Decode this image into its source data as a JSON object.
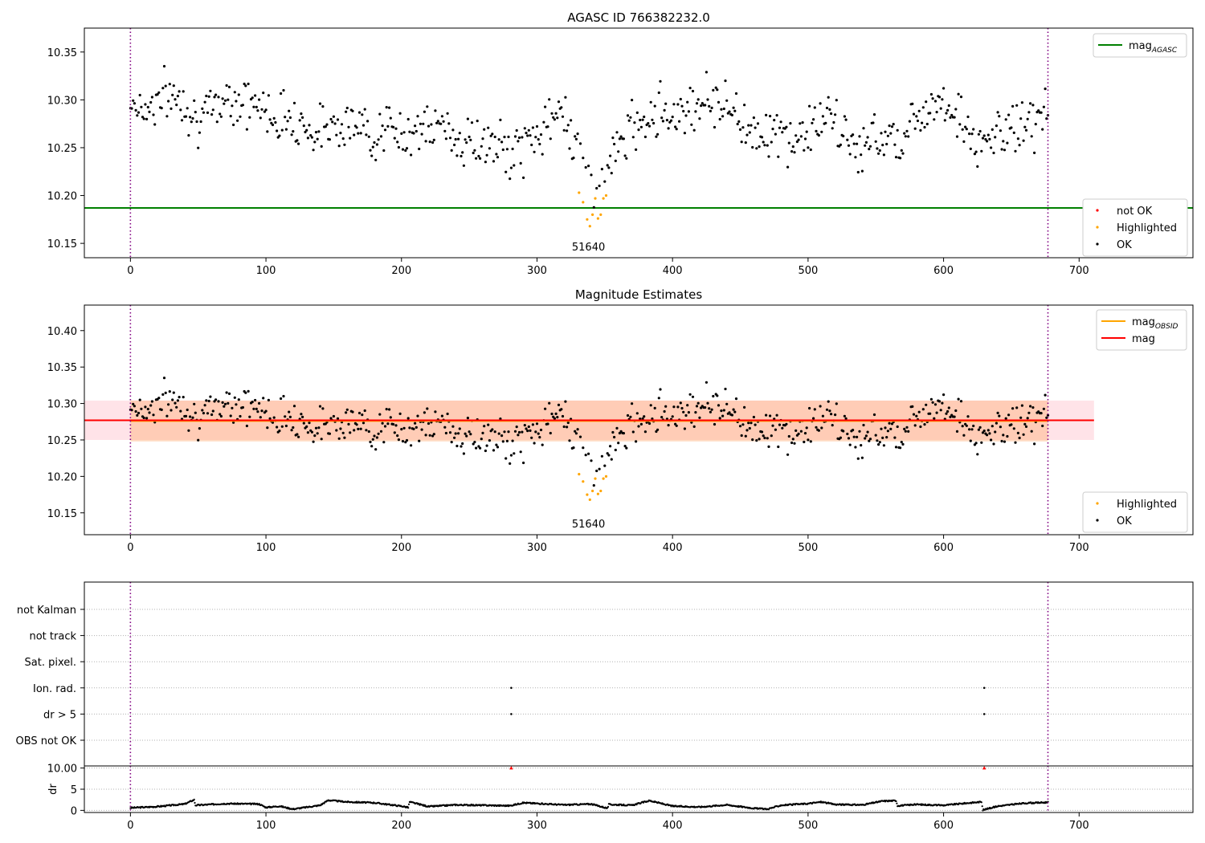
{
  "chart_data": [
    {
      "type": "scatter",
      "title": "AGASC ID 766382232.0",
      "xlabel": "",
      "ylabel": "",
      "xlim": [
        -34,
        784
      ],
      "ylim": [
        10.135,
        10.375
      ],
      "xticks": [
        0,
        100,
        200,
        300,
        400,
        500,
        600,
        700
      ],
      "yticks": [
        10.15,
        10.2,
        10.25,
        10.3,
        10.35
      ],
      "vlines": [
        0,
        677
      ],
      "hline": {
        "name": "mag_AGASC",
        "y": 10.187,
        "color": "#008000"
      },
      "obsid_label": {
        "text": "51640",
        "x": 338
      },
      "legend_top": {
        "position": "top-right",
        "entries": [
          {
            "label": "mag",
            "subscript": "AGASC",
            "color": "#008000"
          }
        ]
      },
      "legend_bottom": {
        "position": "lower-right",
        "entries": [
          {
            "label": "not OK",
            "color": "#ff0000"
          },
          {
            "label": "Highlighted",
            "color": "#ffa500"
          },
          {
            "label": "OK",
            "color": "#000000"
          }
        ]
      },
      "series": [
        {
          "name": "OK",
          "color": "#000000",
          "x": [
            0,
            10,
            20,
            30,
            40,
            50,
            60,
            70,
            80,
            90,
            100,
            110,
            120,
            130,
            140,
            150,
            160,
            170,
            180,
            190,
            200,
            210,
            220,
            230,
            240,
            250,
            260,
            270,
            280,
            290,
            300,
            310,
            320,
            328,
            335,
            340,
            345,
            350,
            355,
            360,
            370,
            380,
            390,
            400,
            410,
            420,
            430,
            440,
            450,
            460,
            470,
            480,
            490,
            500,
            510,
            520,
            530,
            540,
            550,
            560,
            570,
            580,
            590,
            600,
            610,
            620,
            625,
            630,
            640,
            650,
            660,
            670,
            677
          ],
          "y": [
            10.3,
            10.29,
            10.3,
            10.305,
            10.3,
            10.28,
            10.285,
            10.305,
            10.3,
            10.295,
            10.29,
            10.28,
            10.285,
            10.27,
            10.265,
            10.28,
            10.275,
            10.27,
            10.265,
            10.27,
            10.26,
            10.275,
            10.265,
            10.275,
            10.26,
            10.255,
            10.255,
            10.25,
            10.245,
            10.25,
            10.265,
            10.275,
            10.29,
            10.26,
            10.225,
            10.215,
            10.22,
            10.225,
            10.235,
            10.25,
            10.27,
            10.285,
            10.29,
            10.285,
            10.29,
            10.3,
            10.3,
            10.295,
            10.28,
            10.265,
            10.27,
            10.26,
            10.255,
            10.27,
            10.28,
            10.275,
            10.255,
            10.25,
            10.26,
            10.265,
            10.26,
            10.28,
            10.3,
            10.3,
            10.285,
            10.265,
            10.24,
            10.255,
            10.265,
            10.27,
            10.275,
            10.28,
            10.29
          ]
        },
        {
          "name": "Highlighted",
          "color": "#ffa500",
          "x": [
            331,
            334,
            337,
            339,
            341,
            343,
            345,
            347,
            349,
            351
          ],
          "y": [
            10.203,
            10.193,
            10.175,
            10.168,
            10.18,
            10.197,
            10.176,
            10.18,
            10.197,
            10.2
          ]
        },
        {
          "name": "not OK",
          "color": "#ff0000",
          "x": [],
          "y": []
        }
      ]
    },
    {
      "type": "scatter",
      "title": "Magnitude Estimates",
      "xlabel": "",
      "ylabel": "",
      "xlim": [
        -34,
        784
      ],
      "ylim": [
        10.12,
        10.435
      ],
      "xticks": [
        0,
        100,
        200,
        300,
        400,
        500,
        600,
        700
      ],
      "yticks": [
        10.15,
        10.2,
        10.25,
        10.3,
        10.35,
        10.4
      ],
      "vlines": [
        0,
        677
      ],
      "hlines": [
        {
          "name": "mag_OBSID",
          "y": 10.276,
          "color": "#ffa500",
          "x_range": [
            0,
            677
          ],
          "band": [
            10.248,
            10.304
          ]
        },
        {
          "name": "mag",
          "y": 10.277,
          "color": "#ff0000",
          "x_range": [
            -34,
            711
          ],
          "band": [
            10.25,
            10.304
          ]
        }
      ],
      "obsid_label": {
        "text": "51640",
        "x": 338
      },
      "legend_top": {
        "position": "top-right",
        "entries": [
          {
            "label": "mag",
            "subscript": "OBSID",
            "color": "#ffa500"
          },
          {
            "label": "mag",
            "subscript": "",
            "color": "#ff0000"
          }
        ]
      },
      "legend_bottom": {
        "position": "lower-right",
        "entries": [
          {
            "label": "Highlighted",
            "color": "#ffa500"
          },
          {
            "label": "OK",
            "color": "#000000"
          }
        ]
      },
      "series": [
        {
          "name": "OK",
          "color": "#000000",
          "same_as_panel": 0
        },
        {
          "name": "Highlighted",
          "color": "#ffa500",
          "same_as_panel": 0
        }
      ]
    },
    {
      "type": "scatter",
      "title": "",
      "xlabel": "",
      "ylabel": "",
      "xlim": [
        -34,
        784
      ],
      "categories": [
        "not Kalman",
        "not track",
        "Sat. pixel.",
        "Ion. rad.",
        "dr > 5",
        "OBS not OK"
      ],
      "flags": [
        {
          "category": "Ion. rad.",
          "x": [
            281,
            630
          ]
        },
        {
          "category": "dr > 5",
          "x": [
            281,
            630
          ]
        }
      ],
      "vlines": [
        0,
        677
      ]
    },
    {
      "type": "line",
      "title": "",
      "xlabel": "",
      "ylabel": "dr",
      "xlim": [
        -34,
        784
      ],
      "ylim": [
        -0.5,
        10.5
      ],
      "xticks": [
        0,
        100,
        200,
        300,
        400,
        500,
        600,
        700
      ],
      "yticks": [
        0,
        5,
        10
      ],
      "vlines": [
        0,
        677
      ],
      "red_markers": {
        "x": [
          281,
          630
        ],
        "y": 10,
        "color": "#ff0000"
      },
      "series": [
        {
          "name": "dr",
          "color": "#000000",
          "x": [
            0,
            20,
            40,
            47,
            48,
            70,
            95,
            100,
            110,
            120,
            140,
            146,
            160,
            180,
            200,
            205,
            206,
            220,
            240,
            260,
            280,
            290,
            320,
            340,
            352,
            353,
            370,
            383,
            400,
            420,
            440,
            460,
            470,
            480,
            500,
            510,
            520,
            540,
            555,
            565,
            566,
            580,
            600,
            620,
            628,
            629,
            640,
            660,
            677
          ],
          "y": [
            0.6,
            0.9,
            1.5,
            2.5,
            1.2,
            1.6,
            1.5,
            0.7,
            1.0,
            0.3,
            1.2,
            2.4,
            2.0,
            1.8,
            1.0,
            0.7,
            2.0,
            0.9,
            1.3,
            1.2,
            1.1,
            1.8,
            1.3,
            1.5,
            0.5,
            1.4,
            1.2,
            2.3,
            1.0,
            0.8,
            1.3,
            0.5,
            0.3,
            1.2,
            1.6,
            2.0,
            1.4,
            1.3,
            2.2,
            2.3,
            1.1,
            1.4,
            1.2,
            1.8,
            2.0,
            0.1,
            1.0,
            1.7,
            1.9
          ]
        }
      ]
    }
  ]
}
